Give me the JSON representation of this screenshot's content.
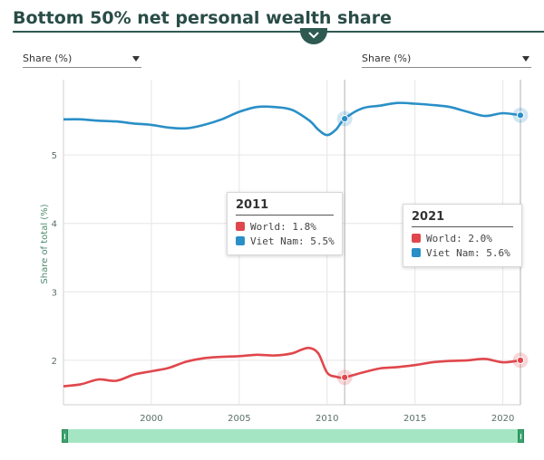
{
  "title": "Bottom 50% net personal wealth share",
  "dropdown_left": {
    "label": "Share (%)"
  },
  "dropdown_right": {
    "label": "Share (%)"
  },
  "colors": {
    "world": "#e0474c",
    "vietnam": "#2a8fc7",
    "accent": "#2f5a52",
    "scroll": "#a4e6c4"
  },
  "icons": {
    "toggle": "chevron-down-icon",
    "dropdown": "caret-down-icon"
  },
  "chart_data": {
    "type": "line",
    "title": "",
    "xlabel": "",
    "ylabel": "Share of total (%)",
    "xlim": [
      1995,
      2021
    ],
    "ylim": [
      1.35,
      6.1
    ],
    "yticks": [
      2,
      3,
      4,
      5
    ],
    "xticks": [
      2000,
      2005,
      2010,
      2015,
      2020
    ],
    "grid": true,
    "series": [
      {
        "name": "Viet Nam",
        "key": "vietnam",
        "x": [
          1995,
          1996,
          1997,
          1998,
          1999,
          2000,
          2001,
          2002,
          2003,
          2004,
          2005,
          2006,
          2007,
          2008,
          2009,
          2009.5,
          2010,
          2010.5,
          2011,
          2012,
          2013,
          2014,
          2015,
          2016,
          2017,
          2018,
          2019,
          2020,
          2021
        ],
        "y": [
          5.52,
          5.52,
          5.5,
          5.49,
          5.46,
          5.44,
          5.4,
          5.39,
          5.44,
          5.52,
          5.63,
          5.7,
          5.7,
          5.66,
          5.5,
          5.37,
          5.29,
          5.37,
          5.53,
          5.68,
          5.72,
          5.76,
          5.75,
          5.73,
          5.7,
          5.63,
          5.57,
          5.61,
          5.58
        ]
      },
      {
        "name": "World",
        "key": "world",
        "x": [
          1995,
          1996,
          1997,
          1998,
          1999,
          2000,
          2001,
          2002,
          2003,
          2004,
          2005,
          2006,
          2007,
          2008,
          2008.5,
          2009,
          2009.5,
          2010,
          2010.5,
          2011,
          2012,
          2013,
          2014,
          2015,
          2016,
          2017,
          2018,
          2019,
          2020,
          2021
        ],
        "y": [
          1.62,
          1.65,
          1.72,
          1.7,
          1.79,
          1.84,
          1.89,
          1.98,
          2.03,
          2.05,
          2.06,
          2.08,
          2.07,
          2.1,
          2.15,
          2.18,
          2.1,
          1.82,
          1.76,
          1.75,
          1.82,
          1.88,
          1.9,
          1.93,
          1.97,
          1.99,
          2.0,
          2.02,
          1.97,
          2.0
        ]
      }
    ],
    "highlights": [
      {
        "x": 2011,
        "values": {
          "world": 1.75,
          "vietnam": 5.53
        }
      },
      {
        "x": 2021,
        "values": {
          "world": 2.0,
          "vietnam": 5.58
        }
      }
    ]
  },
  "tooltips": [
    {
      "year": "2011",
      "world": "World: 1.8%",
      "vietnam": "Viet Nam: 5.5%"
    },
    {
      "year": "2021",
      "world": "World: 2.0%",
      "vietnam": "Viet Nam: 5.6%"
    }
  ]
}
